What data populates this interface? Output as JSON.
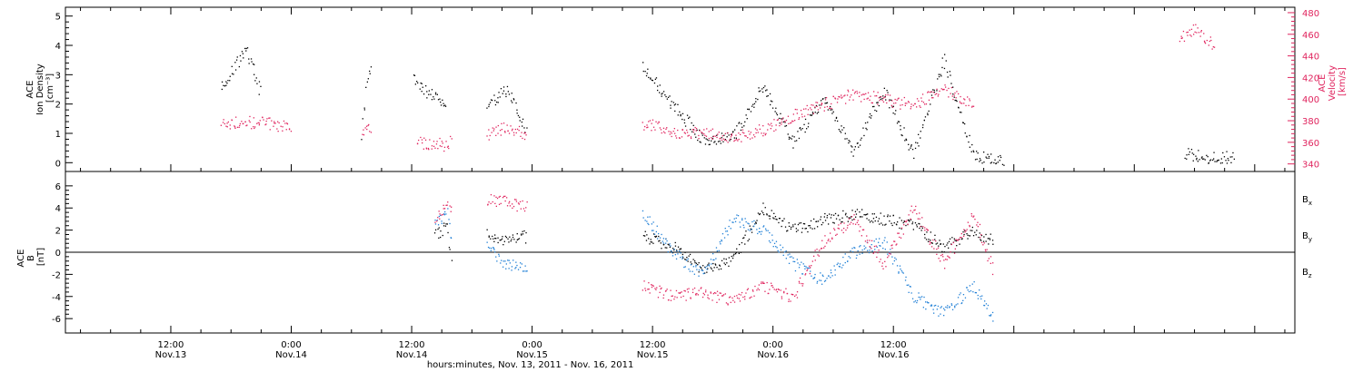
{
  "chart_data": [
    {
      "type": "scatter",
      "panel": "top",
      "ylabel": [
        "ACE",
        "Ion Density",
        "[cm⁻³]"
      ],
      "ylim": [
        -0.3,
        5.3
      ],
      "yticks": [
        0,
        1,
        2,
        3,
        4,
        5
      ],
      "y2label": [
        "ACE",
        "Velocity",
        "[km/s]"
      ],
      "y2lim": [
        333,
        485
      ],
      "y2ticks": [
        340,
        360,
        380,
        400,
        420,
        440,
        460,
        480
      ],
      "series": [
        {
          "axis": "left",
          "color": "#000000",
          "segments": [
            {
              "x": [
                -7,
                -4.5,
                -3
              ],
              "y": [
                2.6,
                3.9,
                2.3
              ]
            },
            {
              "x": [
                7,
                7.5,
                8
              ],
              "y": [
                1.0,
                2.8,
                3.5
              ]
            },
            {
              "x": [
                12.2,
                13.5,
                15.5
              ],
              "y": [
                2.9,
                2.4,
                2.0
              ]
            },
            {
              "x": [
                19.5,
                21.5,
                23.5
              ],
              "y": [
                2.0,
                2.5,
                1.0
              ]
            },
            {
              "x": [
                35,
                38,
                41,
                44,
                47,
                50,
                53,
                56,
                59,
                62,
                65,
                68,
                71
              ],
              "y": [
                3.3,
                2.0,
                0.8,
                0.9,
                2.6,
                0.7,
                2.2,
                0.4,
                2.5,
                0.3,
                3.5,
                0.2,
                0.1
              ]
            },
            {
              "x": [
                89,
                91,
                94
              ],
              "y": [
                0.3,
                0.2,
                0.2
              ]
            }
          ]
        },
        {
          "axis": "right",
          "color": "#e0245e",
          "segments": [
            {
              "x": [
                -7,
                -4,
                -1,
                0
              ],
              "y": [
                378,
                379,
                376,
                370
              ]
            },
            {
              "x": [
                7,
                7.5,
                8
              ],
              "y": [
                365,
                375,
                370
              ]
            },
            {
              "x": [
                12.5,
                15.5,
                16
              ],
              "y": [
                360,
                358,
                362
              ]
            },
            {
              "x": [
                19.5,
                21.5,
                23.5
              ],
              "y": [
                368,
                375,
                367
              ]
            },
            {
              "x": [
                35,
                38,
                41,
                44,
                47,
                50,
                53,
                56,
                59,
                62,
                65,
                68
              ],
              "y": [
                378,
                370,
                368,
                365,
                372,
                385,
                395,
                405,
                400,
                395,
                410,
                395
              ]
            },
            {
              "x": [
                88.5,
                90,
                92
              ],
              "y": [
                455,
                465,
                450
              ]
            }
          ]
        }
      ]
    },
    {
      "type": "scatter",
      "panel": "bottom",
      "ylabel": [
        "ACE",
        "B",
        "[nT]"
      ],
      "ylim": [
        -7.3,
        7.3
      ],
      "yticks": [
        -6,
        -4,
        -2,
        0,
        2,
        4,
        6
      ],
      "zero_line": true,
      "series": [
        {
          "name": "B",
          "subscript": "x",
          "color": "#000000",
          "segments": [
            {
              "x": [
                14.3,
                15.5,
                16
              ],
              "y": [
                1.5,
                2.5,
                -2.0
              ]
            },
            {
              "x": [
                19.5,
                21,
                23.5
              ],
              "y": [
                1.7,
                1.0,
                1.5
              ]
            },
            {
              "x": [
                35,
                38,
                41,
                44,
                47,
                50,
                53,
                56,
                59,
                62,
                65,
                68,
                70
              ],
              "y": [
                1.5,
                0.5,
                -1.5,
                -0.5,
                4.0,
                2.0,
                3.0,
                3.5,
                3.0,
                2.5,
                0.5,
                2.0,
                1.0
              ]
            }
          ]
        },
        {
          "name": "B",
          "subscript": "y",
          "color": "#1f7fd6",
          "segments": [
            {
              "x": [
                14.3,
                15.5,
                16
              ],
              "y": [
                2.8,
                3.5,
                0.5
              ]
            },
            {
              "x": [
                19.5,
                21,
                23.5
              ],
              "y": [
                1.0,
                -1.0,
                -1.5
              ]
            },
            {
              "x": [
                35,
                38,
                41,
                44,
                47,
                50,
                53,
                56,
                59,
                62,
                65,
                68,
                70
              ],
              "y": [
                3.5,
                0.0,
                -2.0,
                3.0,
                2.0,
                -1.0,
                -2.5,
                0.0,
                1.0,
                -4.0,
                -5.5,
                -3.0,
                -6.0
              ]
            }
          ]
        },
        {
          "name": "B",
          "subscript": "z",
          "color": "#e0245e",
          "segments": [
            {
              "x": [
                14.3,
                15.5,
                16
              ],
              "y": [
                3.0,
                4.2,
                4.0
              ]
            },
            {
              "x": [
                19.5,
                21.5,
                23.5
              ],
              "y": [
                4.8,
                4.5,
                4.0
              ]
            },
            {
              "x": [
                35,
                38,
                41,
                44,
                47,
                50,
                53,
                56,
                59,
                62,
                65,
                68,
                70
              ],
              "y": [
                -3.0,
                -4.0,
                -3.5,
                -4.5,
                -3.0,
                -4.0,
                1.0,
                3.0,
                -1.0,
                4.0,
                -1.0,
                3.5,
                -2.0
              ]
            }
          ]
        }
      ]
    }
  ],
  "x_axis": {
    "title": "hours:minutes, Nov. 13, 2011 - Nov. 16, 2011",
    "xlim": [
      -22.5,
      100
    ],
    "ticks": [
      {
        "x": -12,
        "time": "12:00",
        "date": "Nov.13"
      },
      {
        "x": 0,
        "time": "0:00",
        "date": "Nov.14"
      },
      {
        "x": 12,
        "time": "12:00",
        "date": "Nov.14"
      },
      {
        "x": 24,
        "time": "0:00",
        "date": "Nov.15"
      },
      {
        "x": 36,
        "time": "12:00",
        "date": "Nov.15"
      },
      {
        "x": 48,
        "time": "0:00",
        "date": "Nov.16"
      },
      {
        "x": 60,
        "time": "12:00",
        "date": "Nov.16"
      }
    ]
  }
}
